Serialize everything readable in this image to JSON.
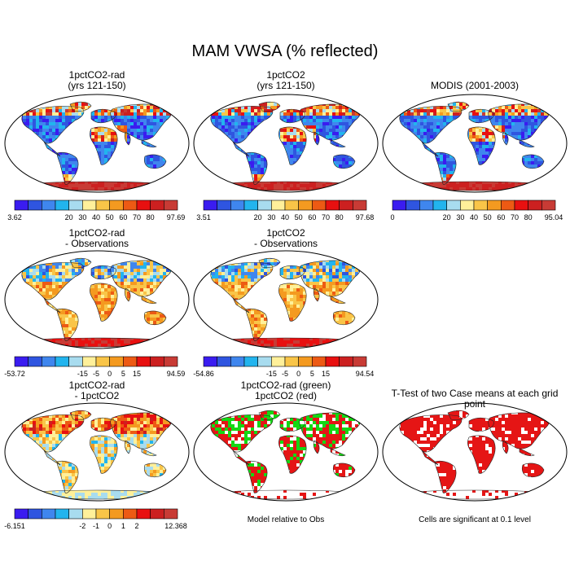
{
  "figure": {
    "title": "MAM VWSA (% reflected)"
  },
  "chart_data": [
    {
      "type": "heatmap",
      "title_line1": "1pctCO2-rad",
      "title_line2": "(yrs 121-150)",
      "colorbar": {
        "min_label": "3.62",
        "tick_labels": [
          "20",
          "30",
          "40",
          "50",
          "60",
          "70",
          "80"
        ],
        "max_label": "97.69",
        "colors": [
          "#3a1cf0",
          "#2f55e0",
          "#3f86ee",
          "#22b4ee",
          "#a8dcef",
          "#fff09a",
          "#f9c548",
          "#f49a20",
          "#ed5a14",
          "#e81010",
          "#cc2020",
          "#c83b35"
        ]
      },
      "field": "1pctCO2-rad"
    },
    {
      "type": "heatmap",
      "title_line1": "1pctCO2",
      "title_line2": "(yrs 121-150)",
      "colorbar": {
        "min_label": "3.51",
        "tick_labels": [
          "20",
          "30",
          "40",
          "50",
          "60",
          "70",
          "80"
        ],
        "max_label": "97.68",
        "colors": [
          "#3a1cf0",
          "#2f55e0",
          "#3f86ee",
          "#22b4ee",
          "#a8dcef",
          "#fff09a",
          "#f9c548",
          "#f49a20",
          "#ed5a14",
          "#e81010",
          "#cc2020",
          "#c83b35"
        ]
      },
      "field": "1pctCO2"
    },
    {
      "type": "heatmap",
      "title_line1": "MODIS (2001-2003)",
      "title_line2": "",
      "colorbar": {
        "min_label": "0",
        "tick_labels": [
          "20",
          "30",
          "40",
          "50",
          "60",
          "70",
          "80"
        ],
        "max_label": "95.04",
        "colors": [
          "#3a1cf0",
          "#2f55e0",
          "#3f86ee",
          "#22b4ee",
          "#a8dcef",
          "#fff09a",
          "#f9c548",
          "#f49a20",
          "#ed5a14",
          "#e81010",
          "#cc2020",
          "#c83b35"
        ]
      },
      "field": "MODIS"
    },
    {
      "type": "heatmap",
      "title_line1": "1pctCO2-rad",
      "title_line2": "- Observations",
      "colorbar": {
        "min_label": "-53.72",
        "tick_labels": [
          "-15",
          "-5",
          "0",
          "5",
          "15"
        ],
        "max_label": "94.59",
        "colors": [
          "#3a1cf0",
          "#2f55e0",
          "#3f86ee",
          "#22b4ee",
          "#a8dcef",
          "#fff09a",
          "#f9c548",
          "#f49a20",
          "#ed5a14",
          "#e81010",
          "#cc2020",
          "#c83b35"
        ]
      },
      "field": "rad-obs"
    },
    {
      "type": "heatmap",
      "title_line1": "1pctCO2",
      "title_line2": "- Observations",
      "colorbar": {
        "min_label": "-54.86",
        "tick_labels": [
          "-15",
          "-5",
          "0",
          "5",
          "15"
        ],
        "max_label": "94.54",
        "colors": [
          "#3a1cf0",
          "#2f55e0",
          "#3f86ee",
          "#22b4ee",
          "#a8dcef",
          "#fff09a",
          "#f9c548",
          "#f49a20",
          "#ed5a14",
          "#e81010",
          "#cc2020",
          "#c83b35"
        ]
      },
      "field": "co2-obs"
    },
    {
      "type": "heatmap",
      "title_line1": "1pctCO2-rad",
      "title_line2": "- 1pctCO2",
      "colorbar": {
        "min_label": "-6.151",
        "tick_labels": [
          "-2",
          "-1",
          "0",
          "1",
          "2"
        ],
        "max_label": "12.368",
        "colors": [
          "#3a1cf0",
          "#2f55e0",
          "#3f86ee",
          "#22b4ee",
          "#a8dcef",
          "#fff09a",
          "#f9c548",
          "#f49a20",
          "#ed5a14",
          "#e81010",
          "#cc2020",
          "#c83b35"
        ]
      },
      "field": "rad-co2"
    },
    {
      "type": "heatmap",
      "title_line1": "1pctCO2-rad (green)",
      "title_line2": "1pctCO2 (red)",
      "note": "Model relative to Obs",
      "field": "model-rel-obs"
    },
    {
      "type": "heatmap",
      "title_line1": "T-Test of two Case means at each grid point",
      "title_line2": "",
      "note": "Cells are significant at 0.1 level",
      "field": "ttest"
    }
  ]
}
